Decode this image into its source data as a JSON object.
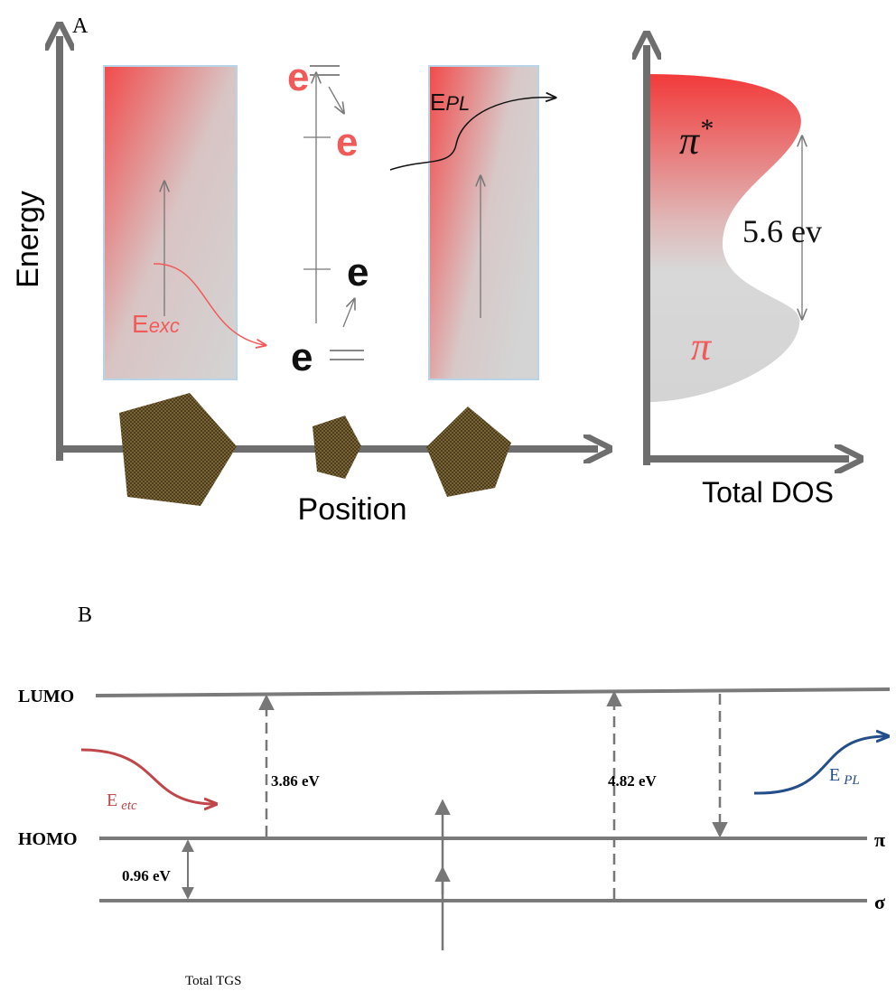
{
  "panel_a": {
    "label": "A",
    "y_axis": "Energy",
    "x_axis": "Position",
    "excitation": {
      "symbol": "E",
      "subscript": "exc"
    },
    "emission": {
      "symbol": "E",
      "subscript": "PL"
    },
    "electrons": [
      "e",
      "e",
      "e",
      "e"
    ],
    "dos": {
      "x_axis": "Total DOS",
      "upper_band": "π",
      "upper_band_superscript": "*",
      "lower_band": "π",
      "gap": "5.6 ev"
    }
  },
  "panel_b": {
    "label": "B",
    "levels": [
      "LUMO",
      "HOMO"
    ],
    "right_labels": [
      "π",
      "σ"
    ],
    "excitation": {
      "symbol": "E",
      "subscript": "etc"
    },
    "emission": {
      "symbol": "E",
      "subscript": "PL"
    },
    "gaps": [
      "3.86 eV",
      "4.82 eV",
      "0.96 eV"
    ],
    "footer": "Total TGS"
  }
}
